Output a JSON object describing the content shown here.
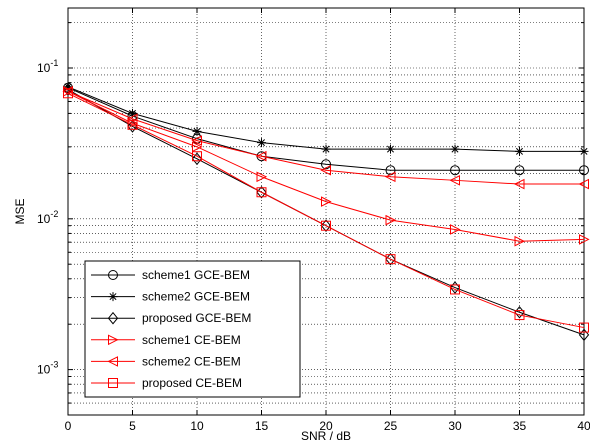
{
  "chart_data": {
    "type": "line",
    "title": "",
    "xlabel": "SNR / dB",
    "ylabel": "MSE",
    "xlim": [
      0,
      40
    ],
    "ylim": [
      0.0005,
      0.25
    ],
    "yscale": "log",
    "grid": true,
    "legend_position": "bottom-left",
    "x": [
      0,
      5,
      10,
      15,
      20,
      25,
      30,
      35,
      40
    ],
    "x_tick_labels": [
      "0",
      "5",
      "10",
      "15",
      "20",
      "25",
      "30",
      "35",
      "40"
    ],
    "y_ticks": [
      {
        "base": "10",
        "exp": "-3",
        "value": 0.001
      },
      {
        "base": "10",
        "exp": "-2",
        "value": 0.01
      },
      {
        "base": "10",
        "exp": "-1",
        "value": 0.1
      }
    ],
    "series": [
      {
        "name": "scheme1 GCE-BEM",
        "color": "#000000",
        "marker": "circle",
        "values": [
          0.074,
          0.048,
          0.034,
          0.026,
          0.023,
          0.021,
          0.021,
          0.021,
          0.021
        ]
      },
      {
        "name": "scheme2 GCE-BEM",
        "color": "#000000",
        "marker": "star",
        "values": [
          0.075,
          0.05,
          0.038,
          0.032,
          0.029,
          0.029,
          0.029,
          0.028,
          0.028
        ]
      },
      {
        "name": "proposed GCE-BEM",
        "color": "#000000",
        "marker": "diamond",
        "values": [
          0.072,
          0.041,
          0.025,
          0.015,
          0.009,
          0.0054,
          0.0035,
          0.0024,
          0.0017
        ]
      },
      {
        "name": "scheme1 CE-BEM",
        "color": "#ff0000",
        "marker": "triangle-right",
        "values": [
          0.07,
          0.043,
          0.03,
          0.019,
          0.013,
          0.0098,
          0.0085,
          0.0071,
          0.0073
        ]
      },
      {
        "name": "scheme2 CE-BEM",
        "color": "#ff0000",
        "marker": "triangle-left",
        "values": [
          0.07,
          0.046,
          0.033,
          0.026,
          0.021,
          0.019,
          0.018,
          0.017,
          0.017
        ]
      },
      {
        "name": "proposed CE-BEM",
        "color": "#ff0000",
        "marker": "square",
        "values": [
          0.068,
          0.042,
          0.026,
          0.015,
          0.009,
          0.0054,
          0.0034,
          0.0023,
          0.0019
        ]
      }
    ]
  }
}
